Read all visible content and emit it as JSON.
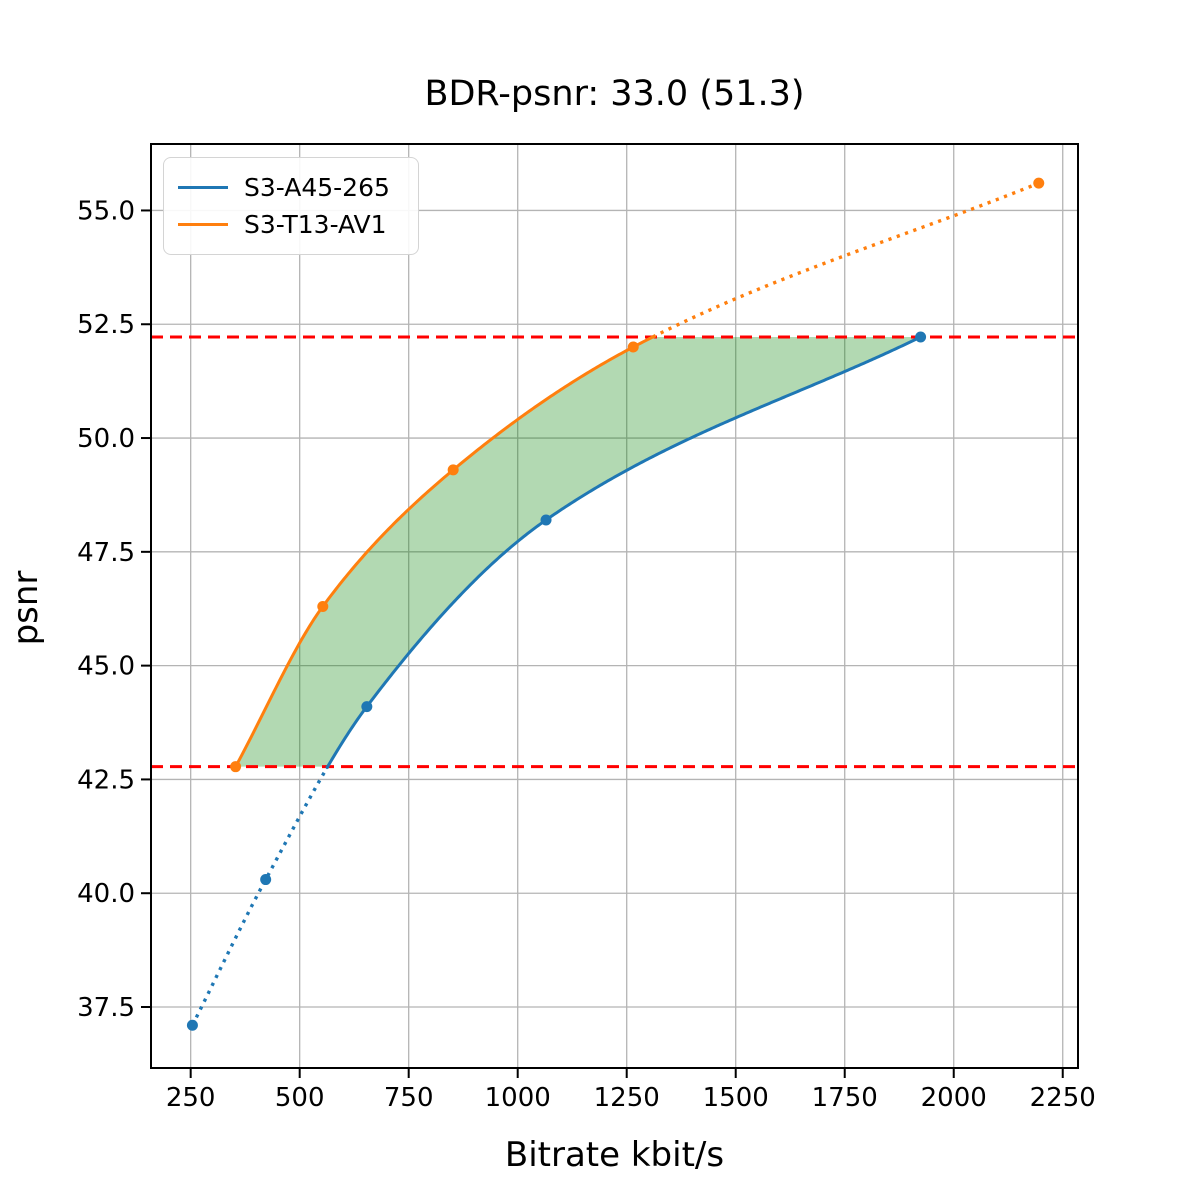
{
  "title": "BDR-psnr: 33.0 (51.3)",
  "xlabel": "Bitrate kbit/s",
  "ylabel": "psnr",
  "legend": {
    "entries": [
      {
        "label": "S3-A45-265",
        "color": "#1f77b4"
      },
      {
        "label": "S3-T13-AV1",
        "color": "#ff7f0e"
      }
    ]
  },
  "chart_data": {
    "type": "line",
    "title": "BDR-psnr: 33.0 (51.3)",
    "xlabel": "Bitrate kbit/s",
    "ylabel": "psnr",
    "series": [
      {
        "name": "S3-A45-265",
        "color": "#1f77b4",
        "points": [
          [
            254,
            37.1
          ],
          [
            422,
            40.3
          ],
          [
            654,
            44.1
          ],
          [
            1065,
            48.2
          ],
          [
            1924,
            52.22
          ]
        ]
      },
      {
        "name": "S3-T13-AV1",
        "color": "#ff7f0e",
        "points": [
          [
            353,
            42.78
          ],
          [
            553,
            46.3
          ],
          [
            852,
            49.3
          ],
          [
            1265,
            52.0
          ],
          [
            2195,
            55.6
          ]
        ]
      }
    ],
    "ref_lines": {
      "color": "#ff0000",
      "lower": 42.78,
      "upper": 52.22,
      "style": "dashed"
    },
    "fill_between": {
      "color": "#008000",
      "alpha": 0.3,
      "y_range": [
        42.78,
        52.22
      ]
    },
    "x_ticks": [
      250,
      500,
      750,
      1000,
      1250,
      1500,
      1750,
      2000,
      2250
    ],
    "x_tick_labels": [
      "250",
      "500",
      "750",
      "1000",
      "1250",
      "1500",
      "1750",
      "2000",
      "2250"
    ],
    "y_ticks": [
      37.5,
      40.0,
      42.5,
      45.0,
      47.5,
      50.0,
      52.5,
      55.0
    ],
    "y_tick_labels": [
      "37.5",
      "40.0",
      "42.5",
      "45.0",
      "47.5",
      "50.0",
      "52.5",
      "55.0"
    ],
    "xlim": [
      159,
      2285
    ],
    "ylim": [
      36.16,
      56.46
    ],
    "grid": true,
    "grid_color": "#b4b4b4",
    "legend_position": "upper-left"
  }
}
